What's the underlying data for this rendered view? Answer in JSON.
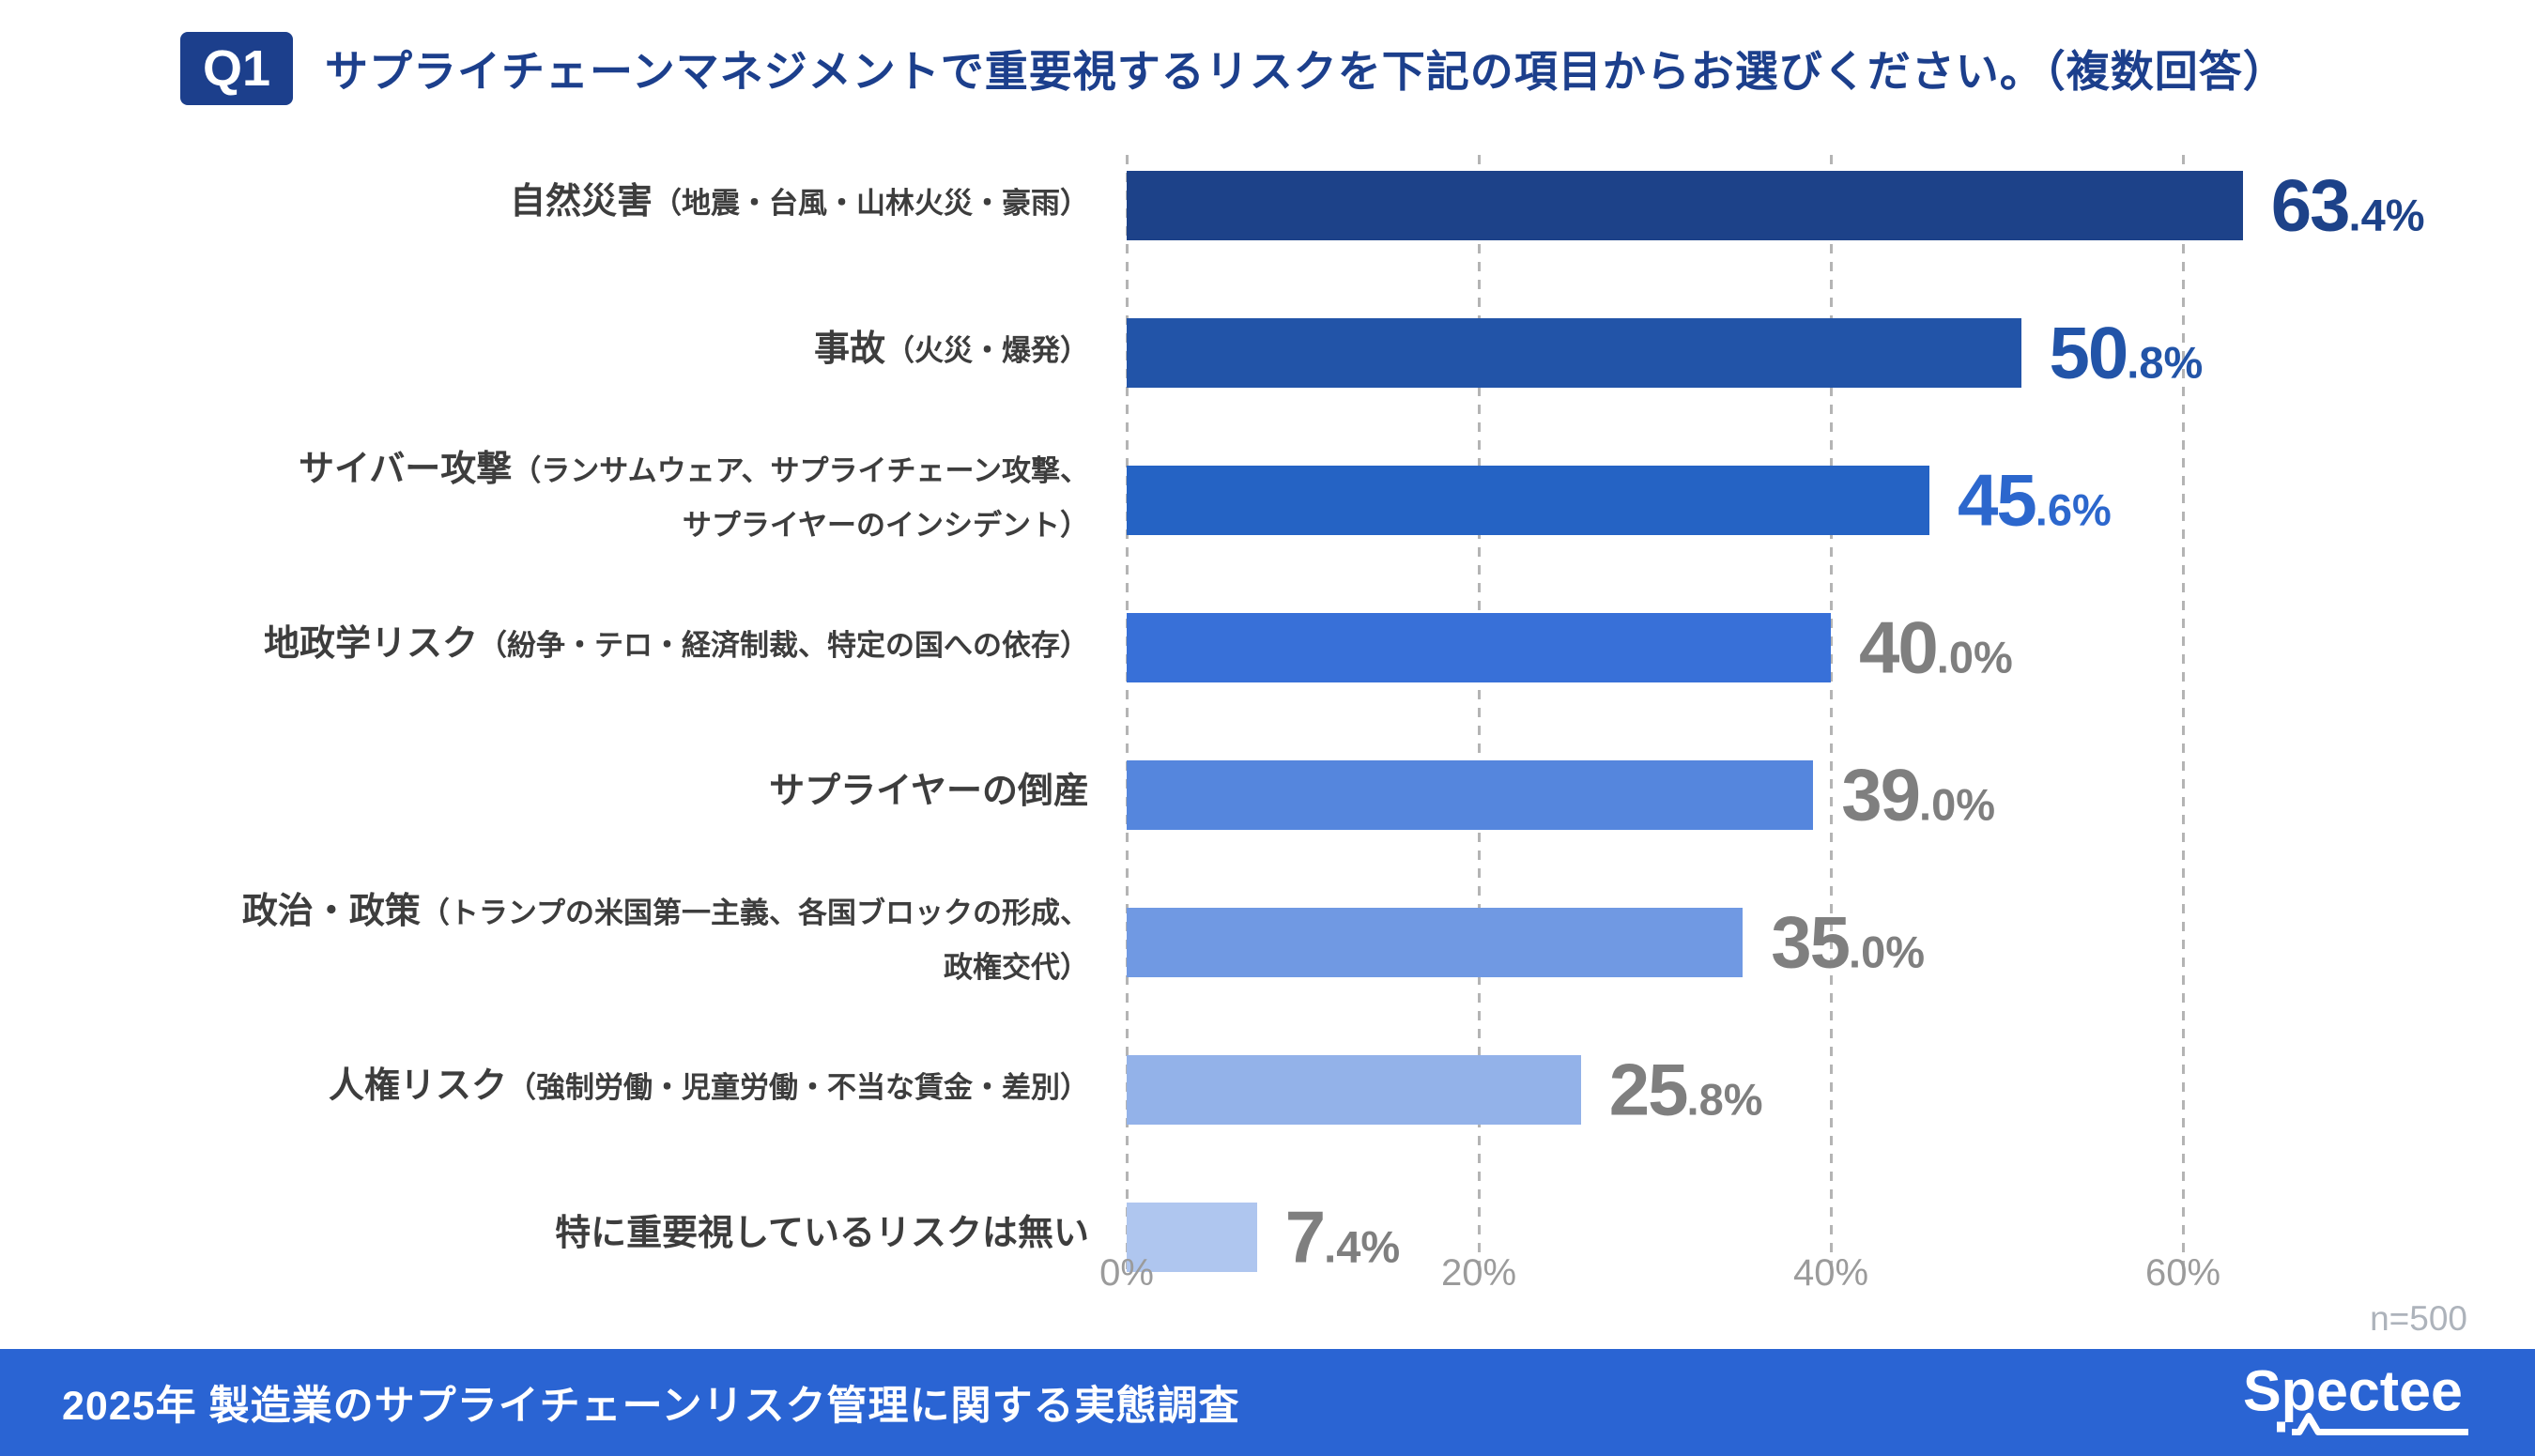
{
  "header": {
    "badge": "Q1",
    "title": "サプライチェーンマネジメントで重要視するリスクを下記の項目からお選びください。（複数回答）"
  },
  "chart_data": {
    "type": "bar",
    "orientation": "horizontal",
    "title": "サプライチェーンマネジメントで重要視するリスクを下記の項目からお選びください。（複数回答）",
    "xlabel": "",
    "ylabel": "",
    "x_ticks": [
      "0%",
      "20%",
      "40%",
      "60%"
    ],
    "x_tick_values": [
      0,
      20,
      40,
      60
    ],
    "x_range": [
      0,
      72
    ],
    "grid": "vertical-dashed",
    "legend": "none",
    "categories": [
      "自然災害（地震・台風・山林火災・豪雨）",
      "事故（火災・爆発）",
      "サイバー攻撃（ランサムウェア、サプライチェーン攻撃、サプライヤーのインシデント）",
      "地政学リスク（紛争・テロ・経済制裁、特定の国への依存）",
      "サプライヤーの倒産",
      "政治・政策（トランプの米国第一主義、各国ブロックの形成、政権交代）",
      "人権リスク（強制労働・児童労働・不当な賃金・差別）",
      "特に重要視しているリスクは無い"
    ],
    "values": [
      63.4,
      50.8,
      45.6,
      40.0,
      39.0,
      35.0,
      25.8,
      7.4
    ],
    "bars": [
      {
        "main": "自然災害",
        "sub1": "（地震・台風・山林火災・豪雨）",
        "sub2": "",
        "value": 63.4,
        "int": "63",
        "frac": ".4%",
        "bar_color": "#1d4289",
        "value_color": "#1d4289"
      },
      {
        "main": "事故",
        "sub1": "（火災・爆発）",
        "sub2": "",
        "value": 50.8,
        "int": "50",
        "frac": ".8%",
        "bar_color": "#2254a8",
        "value_color": "#2254a8"
      },
      {
        "main": "サイバー攻撃",
        "sub1": "（ランサムウェア、サプライチェーン攻撃、",
        "sub2": "サプライヤーのインシデント）",
        "value": 45.6,
        "int": "45",
        "frac": ".6%",
        "bar_color": "#2563c4",
        "value_color": "#2c67cd"
      },
      {
        "main": "地政学リスク",
        "sub1": "（紛争・テロ・経済制裁、特定の国への依存）",
        "sub2": "",
        "value": 40.0,
        "int": "40",
        "frac": ".0%",
        "bar_color": "#3870d8",
        "value_color": "#7f7f7f"
      },
      {
        "main": "サプライヤーの倒産",
        "sub1": "",
        "sub2": "",
        "value": 39.0,
        "int": "39",
        "frac": ".0%",
        "bar_color": "#5586dd",
        "value_color": "#7f7f7f"
      },
      {
        "main": "政治・政策",
        "sub1": "（トランプの米国第一主義、各国ブロックの形成、",
        "sub2": "政権交代）",
        "value": 35.0,
        "int": "35",
        "frac": ".0%",
        "bar_color": "#7099e3",
        "value_color": "#7f7f7f"
      },
      {
        "main": "人権リスク",
        "sub1": "（強制労働・児童労働・不当な賃金・差別）",
        "sub2": "",
        "value": 25.8,
        "int": "25",
        "frac": ".8%",
        "bar_color": "#93b2e9",
        "value_color": "#7f7f7f"
      },
      {
        "main": "特に重要視しているリスクは無い",
        "sub1": "",
        "sub2": "",
        "value": 7.4,
        "int": "7",
        "frac": ".4%",
        "bar_color": "#afc6ef",
        "value_color": "#7f7f7f"
      }
    ],
    "sample_note": "n=500"
  },
  "footer": {
    "title": "2025年 製造業のサプライチェーンリスク管理に関する実態調査",
    "logo_text": "Spectee"
  },
  "colors": {
    "accent_navy": "#1c3f8c",
    "footer_blue": "#2a64d3",
    "label_gray": "#3d3d3d",
    "value_gray": "#7f7f7f",
    "tick_gray": "#9b9b9b",
    "note_gray": "#adb3bb",
    "grid_gray": "#b4b4b4"
  }
}
